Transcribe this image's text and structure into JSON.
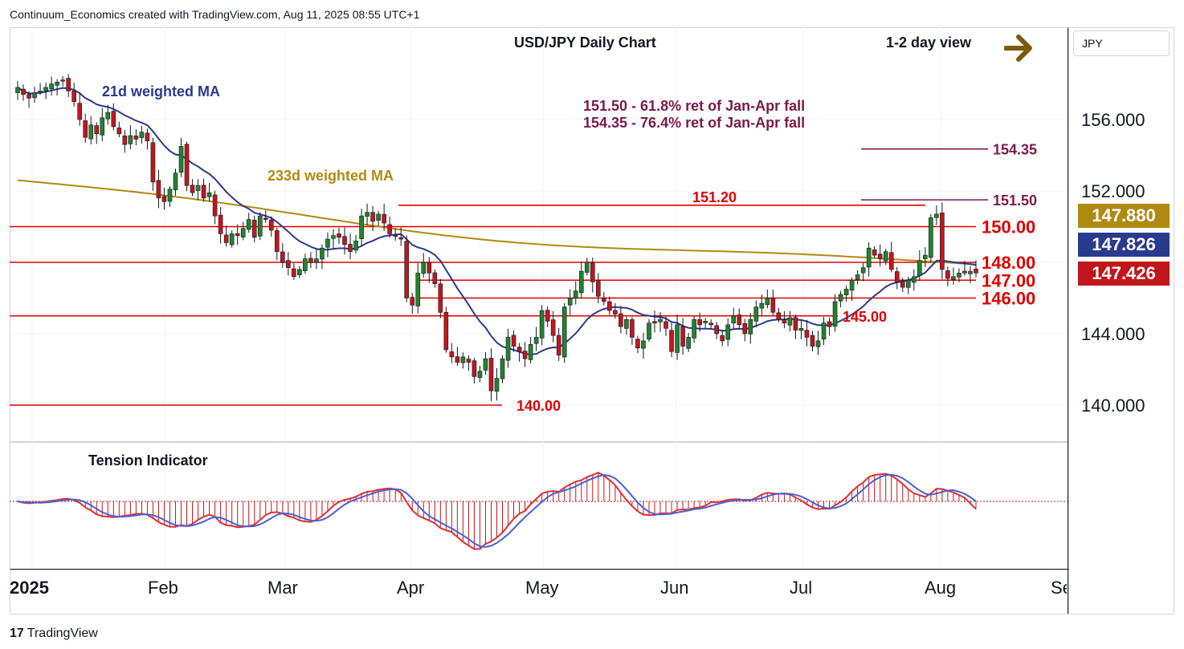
{
  "header": {
    "attribution": "Continuum_Economics created with TradingView.com, Aug 11, 2025 08:55 UTC+1",
    "chart_title": "USD/JPY Daily Chart",
    "view_label": "1-2 day view",
    "currency": "JPY",
    "brand": "TradingView"
  },
  "colors": {
    "bull": "#22832e",
    "bear": "#c2161d",
    "ma21": "#2a3a8c",
    "ma233": "#b08a10",
    "level": "#e00000",
    "retrace": "#7b1a4a",
    "arrow": "#7a5c10"
  },
  "chart_data": {
    "type": "candlestick",
    "title": "USD/JPY Daily Chart",
    "ylim": [
      138.0,
      159.5
    ],
    "yticks": [
      "156.000",
      "152.000",
      "144.000",
      "140.000"
    ],
    "months": [
      "2025",
      "Feb",
      "Mar",
      "Apr",
      "May",
      "Jun",
      "Jul",
      "Aug",
      "Sep"
    ],
    "price_tags": [
      {
        "label": "147.880",
        "series": "233d weighted MA",
        "color": "#b08a10"
      },
      {
        "label": "147.826",
        "series": "21d weighted MA",
        "color": "#2a3a8c"
      },
      {
        "label": "147.426",
        "series": "Last price",
        "color": "#c2161d"
      }
    ],
    "levels": [
      {
        "value": 150.0,
        "label": "150.00"
      },
      {
        "value": 148.0,
        "label": "148.00"
      },
      {
        "value": 147.0,
        "label": "147.00"
      },
      {
        "value": 146.0,
        "label": "146.00"
      },
      {
        "value": 145.0,
        "label": "145.00"
      },
      {
        "value": 140.0,
        "label": "140.00"
      },
      {
        "value": 151.2,
        "label": "151.20"
      }
    ],
    "retracements": [
      {
        "value": 154.35,
        "label": "154.35"
      },
      {
        "value": 151.5,
        "label": "151.50"
      }
    ],
    "annotations": [
      "151.50 - 61.8% ret of Jan-Apr fall",
      "154.35 - 76.4% ret of Jan-Apr fall"
    ],
    "ma_labels": {
      "ma21": "21d weighted MA",
      "ma233": "233d weighted MA"
    },
    "close": [
      157.8,
      157.4,
      157.2,
      157.5,
      157.6,
      157.8,
      158.0,
      158.1,
      158.2,
      157.6,
      157.0,
      156.0,
      155.0,
      155.7,
      155.2,
      156.1,
      156.4,
      155.6,
      155.2,
      154.6,
      155.1,
      154.9,
      155.3,
      154.8,
      152.5,
      151.6,
      151.4,
      152.1,
      153.0,
      154.5,
      152.3,
      151.9,
      152.3,
      151.6,
      151.9,
      150.6,
      149.6,
      149.1,
      149.6,
      149.5,
      149.9,
      150.4,
      149.4,
      150.6,
      150.4,
      149.8,
      148.6,
      148.0,
      147.7,
      147.2,
      147.6,
      148.2,
      148.0,
      148.2,
      148.8,
      149.3,
      149.5,
      149.4,
      149.0,
      148.6,
      149.2,
      150.6,
      150.8,
      150.3,
      150.7,
      150.2,
      149.6,
      149.5,
      149.3,
      146.0,
      145.6,
      147.4,
      148.0,
      147.4,
      146.8,
      145.2,
      143.1,
      142.7,
      142.4,
      142.7,
      142.4,
      141.6,
      141.9,
      142.6,
      140.8,
      141.5,
      142.6,
      143.8,
      143.3,
      143.0,
      142.6,
      143.4,
      143.8,
      145.3,
      144.7,
      143.9,
      142.8,
      145.5,
      146.0,
      146.4,
      147.5,
      148.0,
      146.9,
      146.1,
      145.8,
      145.3,
      145.1,
      144.4,
      144.8,
      143.8,
      143.2,
      143.6,
      144.6,
      144.6,
      144.8,
      144.3,
      143.0,
      144.5,
      143.3,
      143.8,
      144.8,
      144.5,
      144.7,
      144.5,
      144.0,
      143.6,
      144.5,
      145.0,
      144.5,
      144.0,
      144.8,
      145.5,
      145.7,
      146.0,
      145.2,
      144.8,
      144.6,
      144.9,
      144.2,
      144.3,
      143.8,
      143.3,
      143.6,
      144.6,
      144.4,
      145.8,
      146.2,
      146.5,
      147.0,
      147.3,
      147.7,
      148.8,
      148.4,
      148.2,
      148.6,
      147.6,
      146.9,
      146.6,
      147.0,
      147.2,
      148.1,
      148.4,
      150.5,
      150.7,
      147.6,
      147.1,
      147.2,
      147.4,
      147.4,
      147.5,
      147.4
    ],
    "tension_indicator": {
      "label": "Tension Indicator",
      "range": [
        -1.0,
        1.0
      ]
    }
  }
}
